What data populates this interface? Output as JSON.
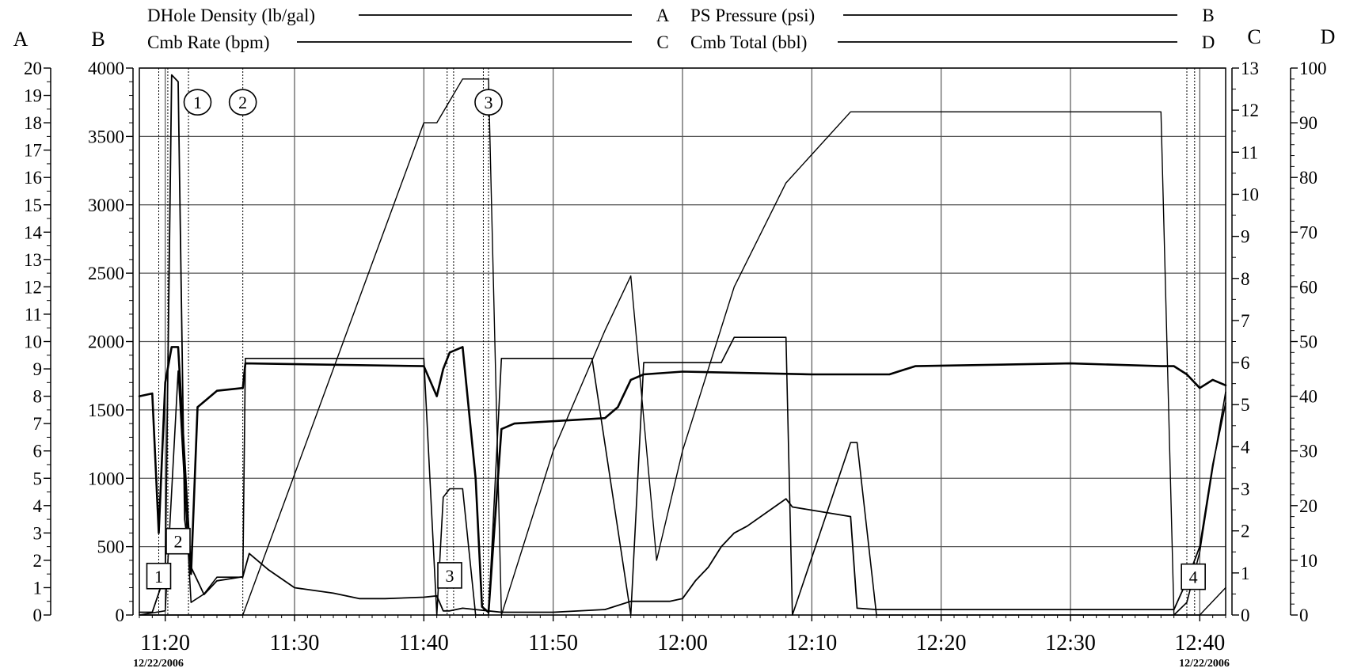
{
  "chart_data": {
    "type": "line",
    "legend": [
      {
        "label": "DHole Density (lb/gal)",
        "axis": "A"
      },
      {
        "label": "PS Pressure (psi)",
        "axis": "B"
      },
      {
        "label": "Cmb Rate (bpm)",
        "axis": "C"
      },
      {
        "label": "Cmb Total (bbl)",
        "axis": "D"
      }
    ],
    "axes": {
      "A": {
        "title": "A",
        "min": 0,
        "max": 20,
        "ticks": [
          0,
          1,
          2,
          3,
          4,
          5,
          6,
          7,
          8,
          9,
          10,
          11,
          12,
          13,
          14,
          15,
          16,
          17,
          18,
          19,
          20
        ]
      },
      "B": {
        "title": "B",
        "min": 0,
        "max": 4000,
        "ticks": [
          0,
          500,
          1000,
          1500,
          2000,
          2500,
          3000,
          3500,
          4000
        ]
      },
      "C": {
        "title": "C",
        "min": 0,
        "max": 13,
        "ticks": [
          0,
          1,
          2,
          3,
          4,
          5,
          6,
          7,
          8,
          9,
          10,
          11,
          12,
          13
        ]
      },
      "D": {
        "title": "D",
        "min": 0,
        "max": 100,
        "ticks": [
          0,
          10,
          20,
          30,
          40,
          50,
          60,
          70,
          80,
          90,
          100
        ]
      },
      "x": {
        "min": "11:18",
        "max": "12:42",
        "ticks": [
          "11:20",
          "11:30",
          "11:40",
          "11:50",
          "12:00",
          "12:10",
          "12:20",
          "12:30",
          "12:40"
        ],
        "start_date": "12/22/2006",
        "end_date": "12/22/2006"
      }
    },
    "grid": true,
    "series": [
      {
        "name": "DHole Density (lb/gal)",
        "axis": "A",
        "x": [
          "11:18",
          "11:19",
          "11:19.5",
          "11:20",
          "11:20.5",
          "11:21",
          "11:22",
          "11:22.5",
          "11:23",
          "11:24",
          "11:26",
          "11:26.2",
          "11:40",
          "11:41",
          "11:41.5",
          "11:42",
          "11:43",
          "11:44",
          "11:44.5",
          "11:45",
          "11:46",
          "11:47",
          "11:54",
          "11:55",
          "11:56",
          "11:57",
          "12:00",
          "12:10",
          "12:16",
          "12:18",
          "12:30",
          "12:37",
          "12:38",
          "12:39",
          "12:40",
          "12:41",
          "12:42"
        ],
        "y": [
          8,
          8.1,
          3,
          8.5,
          9.8,
          9.8,
          1.5,
          7.6,
          7.8,
          8.2,
          8.3,
          9.2,
          9.1,
          8,
          9,
          9.6,
          9.8,
          5,
          0.3,
          0.1,
          6.8,
          7,
          7.2,
          7.6,
          8.6,
          8.8,
          8.9,
          8.8,
          8.8,
          9.1,
          9.2,
          9.1,
          9.1,
          8.8,
          8.3,
          8.6,
          8.4
        ]
      },
      {
        "name": "PS Pressure (psi)",
        "axis": "B",
        "x": [
          "11:18",
          "11:19",
          "11:20",
          "11:20.5",
          "11:21",
          "11:21.5",
          "11:22",
          "11:23",
          "11:24",
          "11:26",
          "11:26.5",
          "11:28",
          "11:30",
          "11:33",
          "11:35",
          "11:37",
          "11:40",
          "11:41",
          "11:41.5",
          "11:42",
          "11:43",
          "11:44",
          "11:45",
          "11:46",
          "11:47",
          "11:50",
          "11:54",
          "11:56",
          "11:57",
          "11:58",
          "11:59",
          "12:00",
          "12:01",
          "12:02",
          "12:03",
          "12:04",
          "12:05",
          "12:08",
          "12:08.5",
          "12:13",
          "12:13.5",
          "12:15",
          "12:37",
          "12:38",
          "12:39",
          "12:40",
          "12:41",
          "12:42"
        ],
        "y": [
          20,
          20,
          300,
          3950,
          3900,
          700,
          350,
          150,
          250,
          280,
          450,
          330,
          200,
          160,
          120,
          120,
          130,
          140,
          30,
          30,
          50,
          40,
          30,
          20,
          20,
          20,
          40,
          100,
          100,
          100,
          100,
          120,
          250,
          350,
          500,
          600,
          650,
          850,
          790,
          720,
          50,
          40,
          40,
          40,
          250,
          500,
          1100,
          1550
        ]
      },
      {
        "name": "Cmb Rate (bpm)",
        "axis": "C",
        "x": [
          "11:18",
          "11:20",
          "11:21",
          "11:22",
          "11:23",
          "11:24",
          "11:26",
          "11:26.2",
          "11:40",
          "11:41",
          "11:41.5",
          "11:42",
          "11:43",
          "11:44",
          "11:45",
          "11:46",
          "11:50",
          "11:53",
          "11:56",
          "11:57",
          "11:58",
          "12:00",
          "12:03",
          "12:04",
          "12:08",
          "12:08.5",
          "12:13",
          "12:13.5",
          "12:15",
          "12:37",
          "12:38",
          "12:39",
          "12:40",
          "12:41",
          "12:42"
        ],
        "y": [
          0,
          0.1,
          5.8,
          0.3,
          0.5,
          0.9,
          0.9,
          6.1,
          6.1,
          0,
          2.8,
          3,
          3,
          0,
          0,
          6.1,
          6.1,
          6.1,
          0,
          6,
          6,
          6,
          6,
          6.6,
          6.6,
          0,
          4.1,
          4.1,
          0,
          0,
          0,
          0.3,
          1.5,
          3.5,
          5.3
        ]
      },
      {
        "name": "Cmb Total (bbl)",
        "axis": "D",
        "x": [
          "11:18",
          "11:20",
          "11:22",
          "11:24",
          "11:26",
          "11:40",
          "11:41",
          "11:43",
          "11:45",
          "11:46",
          "11:50",
          "11:54",
          "11:56",
          "11:58",
          "12:00",
          "12:04",
          "12:08",
          "12:13",
          "12:37",
          "12:38",
          "12:40",
          "12:42"
        ],
        "y": [
          0,
          0,
          0,
          0,
          0,
          90,
          90,
          98,
          98,
          0,
          30,
          52,
          62,
          10,
          30,
          60,
          79,
          92,
          92,
          0,
          0,
          5
        ]
      }
    ],
    "annotations": [
      {
        "label": "1",
        "shape": "box",
        "time": "11:19.5",
        "value_B": 285
      },
      {
        "label": "2",
        "shape": "box",
        "time": "11:21",
        "value_B": 540
      },
      {
        "label": "3",
        "shape": "box",
        "time": "11:42",
        "value_B": 290
      },
      {
        "label": "4",
        "shape": "box",
        "time": "12:39.5",
        "value_B": 280
      },
      {
        "label": "1",
        "shape": "circle",
        "time": "11:22.5",
        "value_B": 3750
      },
      {
        "label": "2",
        "shape": "circle",
        "time": "11:26",
        "value_B": 3750
      },
      {
        "label": "3",
        "shape": "circle",
        "time": "11:45",
        "value_B": 3750
      }
    ],
    "markers_vertical": [
      "11:19.5",
      "11:20.2",
      "11:21.8",
      "11:26",
      "11:41.8",
      "11:42.3",
      "11:44.6",
      "11:45",
      "12:39",
      "12:39.6"
    ]
  }
}
